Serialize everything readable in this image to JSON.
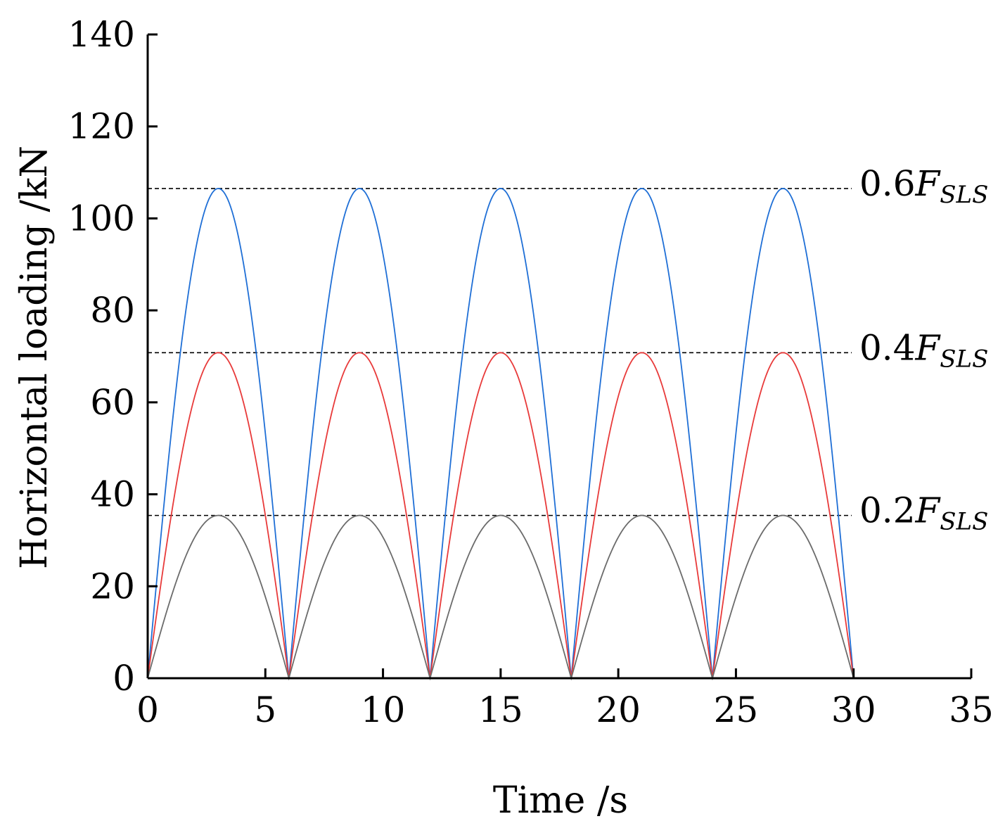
{
  "chart_data": {
    "type": "line",
    "xlabel": "Time /s",
    "ylabel": "Horizontal loading /kN",
    "xlim": [
      0,
      35
    ],
    "ylim": [
      0,
      140
    ],
    "x_ticks": [
      0,
      5,
      10,
      15,
      20,
      25,
      30,
      35
    ],
    "y_ticks": [
      0,
      20,
      40,
      60,
      80,
      100,
      120,
      140
    ],
    "grid": false,
    "legend": "none",
    "curve": "|sin(pi*t/6)| scaled to peak, t in [0, 30]",
    "series": [
      {
        "peak": 106.5,
        "period": 6,
        "x_start": 0,
        "x_end": 30,
        "color": "#1f6fd6"
      },
      {
        "peak": 70.8,
        "period": 6,
        "x_start": 0,
        "x_end": 30,
        "color": "#e83a3a"
      },
      {
        "peak": 35.4,
        "period": 6,
        "x_start": 0,
        "x_end": 30,
        "color": "#6b6b6b"
      }
    ],
    "reference_lines": [
      {
        "y": 106.5,
        "prefix": "0.6",
        "symbol": "F",
        "subscript": "SLS"
      },
      {
        "y": 70.8,
        "prefix": "0.4",
        "symbol": "F",
        "subscript": "SLS"
      },
      {
        "y": 35.4,
        "prefix": "0.2",
        "symbol": "F",
        "subscript": "SLS"
      }
    ]
  }
}
